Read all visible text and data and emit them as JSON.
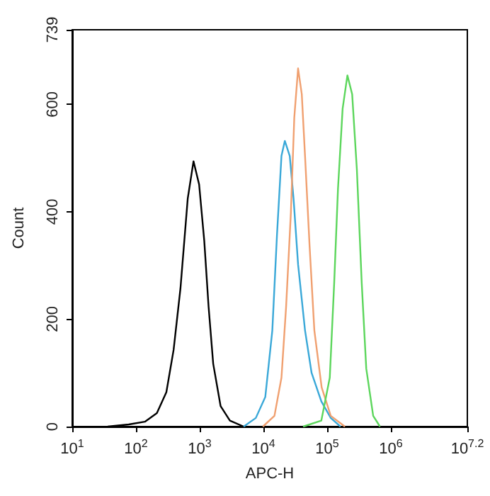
{
  "chart_data": {
    "type": "line",
    "xlabel": "APC-H",
    "ylabel": "Count",
    "log": "x",
    "marker": "none",
    "xlim": [
      10,
      15848932
    ],
    "xticks": [
      {
        "value": 10,
        "label": "10$^{1}$"
      },
      {
        "value": 100,
        "label": "10$^{2}$"
      },
      {
        "value": 1000,
        "label": "10$^{3}$"
      },
      {
        "value": 10000,
        "label": "10$^{4}$"
      },
      {
        "value": 100000,
        "label": "10$^{5}$"
      },
      {
        "value": 1000000,
        "label": "10$^{6}$"
      },
      {
        "value": 15848932,
        "label": "10$^{7.2}$"
      }
    ],
    "ylim": [
      0,
      739
    ],
    "yticks": [
      0,
      200,
      400,
      600,
      739
    ],
    "series": [
      {
        "color": "#000000",
        "x": [
          36,
          77,
          138,
          213,
          300,
          390,
          500,
          650,
          800,
          980,
          1180,
          1380,
          1630,
          2130,
          2980,
          4900
        ],
        "values": [
          0,
          4,
          9,
          25,
          64,
          143,
          258,
          425,
          494,
          451,
          346,
          223,
          117,
          38,
          11,
          0
        ]
      },
      {
        "color": "#3aa8d8",
        "x": [
          4900,
          7600,
          10700,
          13800,
          16300,
          19200,
          21700,
          25900,
          29700,
          35000,
          45000,
          57000,
          81000,
          114000,
          162000
        ],
        "values": [
          0,
          16,
          55,
          179,
          355,
          504,
          532,
          504,
          425,
          302,
          179,
          100,
          47,
          16,
          0
        ]
      },
      {
        "color": "#f0a070",
        "x": [
          9800,
          14900,
          19200,
          22700,
          27000,
          30500,
          35000,
          40000,
          45000,
          53000,
          63000,
          82000,
          114000,
          190000
        ],
        "values": [
          0,
          20,
          91,
          223,
          399,
          575,
          667,
          619,
          504,
          337,
          179,
          73,
          20,
          0
        ]
      },
      {
        "color": "#5cd65c",
        "x": [
          42000,
          81000,
          110000,
          129000,
          148000,
          175000,
          208000,
          247000,
          293000,
          349000,
          411000,
          528000,
          675000
        ],
        "values": [
          0,
          11,
          91,
          267,
          443,
          592,
          654,
          619,
          478,
          267,
          108,
          20,
          0
        ]
      }
    ]
  }
}
